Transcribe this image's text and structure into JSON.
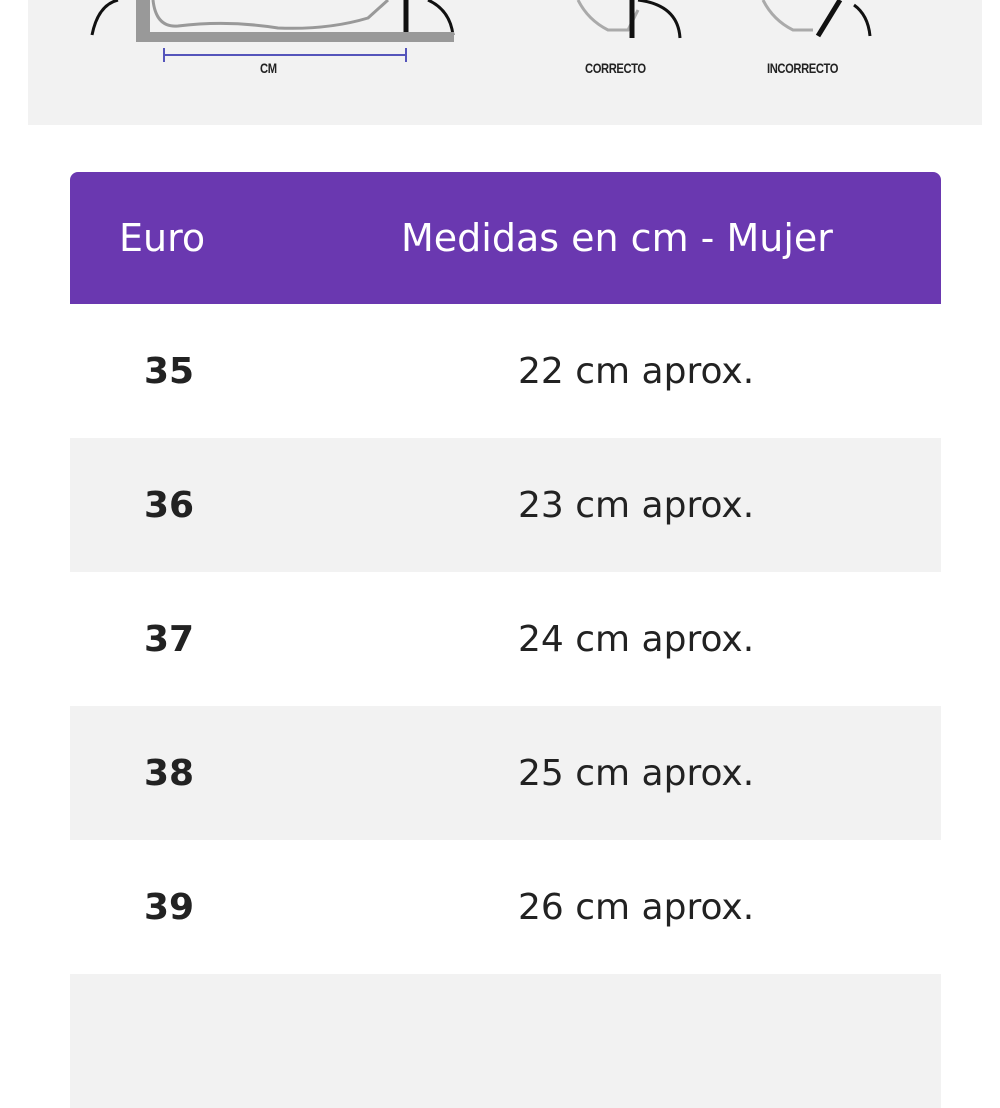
{
  "illustration": {
    "measure_label": "CM",
    "correct_label": "CORRECTO",
    "incorrect_label": "INCORRECTO"
  },
  "table": {
    "header_color": "#6a38b0",
    "columns": [
      "Euro",
      "Medidas en cm - Mujer"
    ],
    "rows": [
      {
        "euro": "35",
        "cm": "22 cm aprox."
      },
      {
        "euro": "36",
        "cm": "23 cm aprox."
      },
      {
        "euro": "37",
        "cm": "24 cm aprox."
      },
      {
        "euro": "38",
        "cm": "25 cm aprox."
      },
      {
        "euro": "39",
        "cm": "26 cm aprox."
      },
      {
        "euro": "",
        "cm": ""
      }
    ]
  }
}
